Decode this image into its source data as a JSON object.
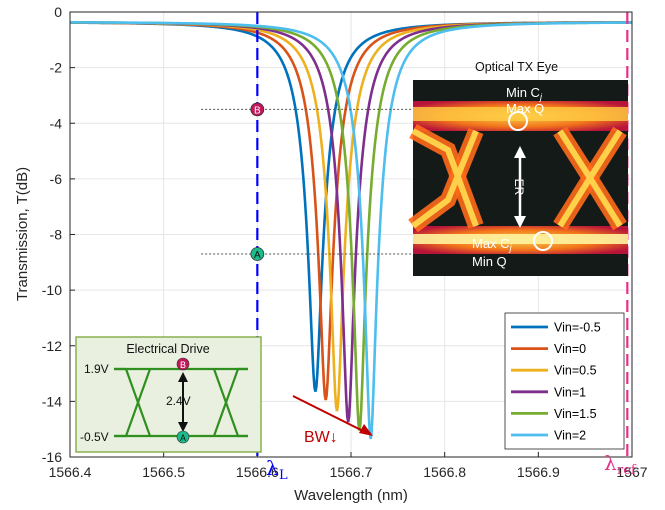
{
  "chart_data": {
    "type": "line",
    "xlabel": "Wavelength (nm)",
    "ylabel": "Transmission, T(dB)",
    "xlim": [
      1566.4,
      1567.0
    ],
    "ylim": [
      -16,
      0
    ],
    "xticks": [
      "1566.4",
      "1566.5",
      "1566.6",
      "1566.7",
      "1566.8",
      "1566.9",
      "1567"
    ],
    "yticks": [
      "0",
      "-2",
      "-4",
      "-6",
      "-8",
      "-10",
      "-12",
      "-14",
      "-16"
    ],
    "grid": true,
    "legend_position": "bottom-right",
    "series": [
      {
        "name": "Vin=-0.5",
        "color": "#0072BD",
        "center": 1566.662,
        "min": -13.3,
        "width": 0.046
      },
      {
        "name": "Vin=0",
        "color": "#D95319",
        "center": 1566.673,
        "min": -13.6,
        "width": 0.046
      },
      {
        "name": "Vin=0.5",
        "color": "#EDB120",
        "center": 1566.685,
        "min": -14.0,
        "width": 0.046
      },
      {
        "name": "Vin=1",
        "color": "#7E2F8E",
        "center": 1566.697,
        "min": -14.4,
        "width": 0.046
      },
      {
        "name": "Vin=1.5",
        "color": "#77AC30",
        "center": 1566.709,
        "min": -14.7,
        "width": 0.046
      },
      {
        "name": "Vin=2",
        "color": "#4DBEEE",
        "center": 1566.721,
        "min": -15.0,
        "width": 0.046
      }
    ],
    "markers": {
      "lambda_L": {
        "x": 1566.6,
        "label": "λ",
        "sub": "L",
        "color": "#0000FF"
      },
      "lambda_ref": {
        "x": 1566.995,
        "label": "λ",
        "sub": "ref",
        "color": "#E8308A"
      },
      "point_A": {
        "label": "A",
        "y": -8.7
      },
      "point_B": {
        "label": "B",
        "y": -3.5
      }
    },
    "annotations": {
      "bw_label": "BW↓",
      "optical_eye_title": "Optical TX Eye",
      "eye_top_line1": "Min C",
      "eye_top_sub1": "j",
      "eye_top_line2": "Max Q",
      "eye_bottom_line1": "Max C",
      "eye_bottom_sub1": "j",
      "eye_bottom_line2": "Min Q",
      "eye_er": "ER",
      "electrical_title": "Electrical Drive",
      "elec_high": "1.9V",
      "elec_low": "-0.5V",
      "elec_swing": "2.4V",
      "elec_B": "B",
      "elec_A": "A"
    }
  }
}
